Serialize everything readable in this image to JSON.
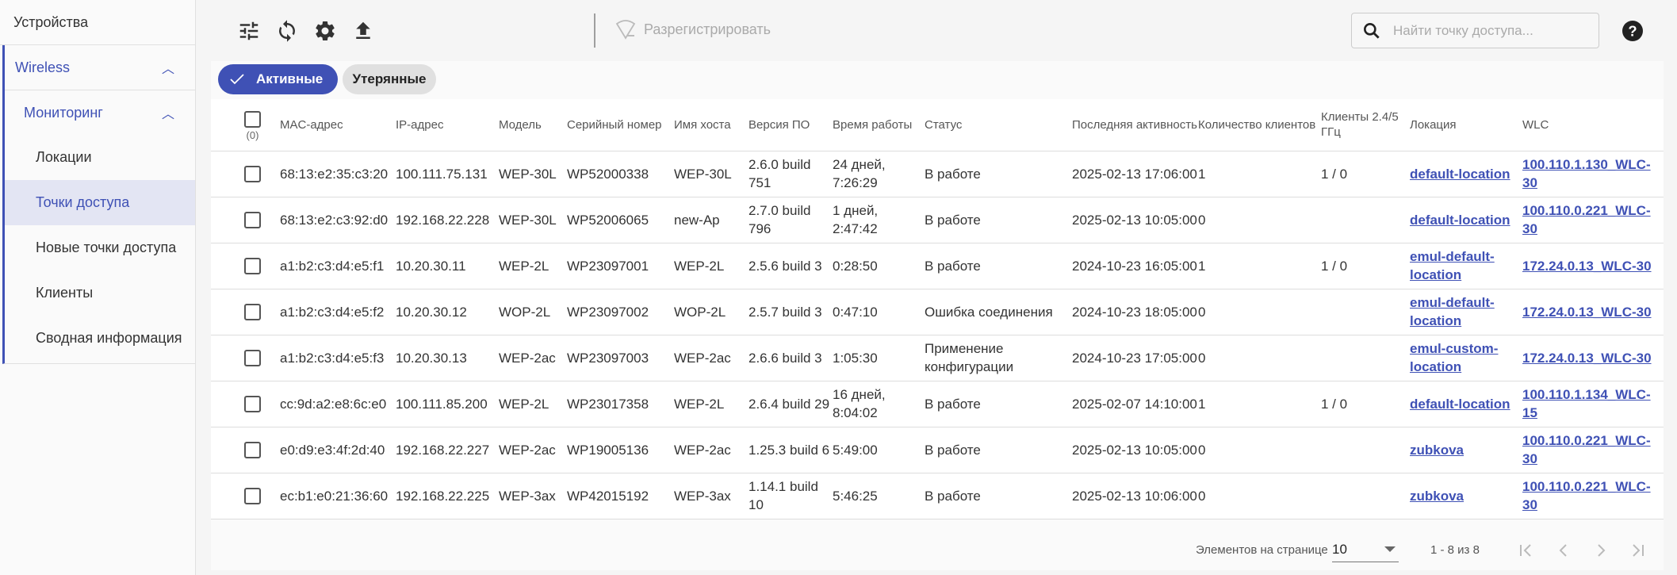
{
  "sidebar": {
    "devices": "Устройства",
    "wireless": "Wireless",
    "monitoring": "Мониторинг",
    "items": [
      {
        "label": "Локации",
        "active": false
      },
      {
        "label": "Точки доступа",
        "active": true
      },
      {
        "label": "Новые точки доступа",
        "active": false
      },
      {
        "label": "Клиенты",
        "active": false
      },
      {
        "label": "Сводная информация",
        "active": false
      }
    ]
  },
  "toolbar": {
    "icons": [
      "tune-icon",
      "sync-icon",
      "gear-icon",
      "upload-icon"
    ],
    "unregister_label": "Разрегистрировать",
    "search_placeholder": "Найти точку доступа...",
    "help_icon": "help-circle-icon"
  },
  "filters": {
    "active": "Активные",
    "lost": "Утерянные"
  },
  "table": {
    "selected_count": "(0)",
    "columns": [
      "MAC-адрес",
      "IP-адрес",
      "Модель",
      "Серийный номер",
      "Имя хоста",
      "Версия ПО",
      "Время работы",
      "Статус",
      "Последняя активность",
      "Количество клиентов",
      "Клиенты 2.4/5 ГГц",
      "Локация",
      "WLC"
    ],
    "rows": [
      [
        "68:13:e2:35:c3:20",
        "100.111.75.131",
        "WEP-30L",
        "WP52000338",
        "WEP-30L",
        "2.6.0 build 751",
        "24 дней, 7:26:29",
        "В работе",
        "2025-02-13 17:06:00",
        "1",
        "1 / 0",
        "default-location",
        "100.110.1.130_WLC-30"
      ],
      [
        "68:13:e2:c3:92:d0",
        "192.168.22.228",
        "WEP-30L",
        "WP52006065",
        "new-Ap",
        "2.7.0 build 796",
        "1 дней, 2:47:42",
        "В работе",
        "2025-02-13 10:05:00",
        "0",
        "",
        "default-location",
        "100.110.0.221_WLC-30"
      ],
      [
        "a1:b2:c3:d4:e5:f1",
        "10.20.30.11",
        "WEP-2L",
        "WP23097001",
        "WEP-2L",
        "2.5.6 build 3",
        "0:28:50",
        "В работе",
        "2024-10-23 16:05:00",
        "1",
        "1 / 0",
        "emul-default-location",
        "172.24.0.13_WLC-30"
      ],
      [
        "a1:b2:c3:d4:e5:f2",
        "10.20.30.12",
        "WOP-2L",
        "WP23097002",
        "WOP-2L",
        "2.5.7 build 3",
        "0:47:10",
        "Ошибка соединения",
        "2024-10-23 18:05:00",
        "0",
        "",
        "emul-default-location",
        "172.24.0.13_WLC-30"
      ],
      [
        "a1:b2:c3:d4:e5:f3",
        "10.20.30.13",
        "WEP-2ac",
        "WP23097003",
        "WEP-2ac",
        "2.6.6 build 3",
        "1:05:30",
        "Применение конфигурации",
        "2024-10-23 17:05:00",
        "0",
        "",
        "emul-custom-location",
        "172.24.0.13_WLC-30"
      ],
      [
        "cc:9d:a2:e8:6c:e0",
        "100.111.85.200",
        "WEP-2L",
        "WP23017358",
        "WEP-2L",
        "2.6.4 build 29",
        "16 дней, 8:04:02",
        "В работе",
        "2025-02-07 14:10:00",
        "1",
        "1 / 0",
        "default-location",
        "100.110.1.134_WLC-15"
      ],
      [
        "e0:d9:e3:4f:2d:40",
        "192.168.22.227",
        "WEP-2ac",
        "WP19005136",
        "WEP-2ac",
        "1.25.3 build 6",
        "5:49:00",
        "В работе",
        "2025-02-13 10:05:00",
        "0",
        "",
        "zubkova",
        "100.110.0.221_WLC-30"
      ],
      [
        "ec:b1:e0:21:36:60",
        "192.168.22.225",
        "WEP-3ax",
        "WP42015192",
        "WEP-3ax",
        "1.14.1 build 10",
        "5:46:25",
        "В работе",
        "2025-02-13 10:06:00",
        "0",
        "",
        "zubkova",
        "100.110.0.221_WLC-30"
      ]
    ]
  },
  "pagination": {
    "per_page_label": "Элементов на странице",
    "per_page": "10",
    "range": "1 - 8 из 8"
  },
  "colors": {
    "accent": "#3f51b5"
  }
}
